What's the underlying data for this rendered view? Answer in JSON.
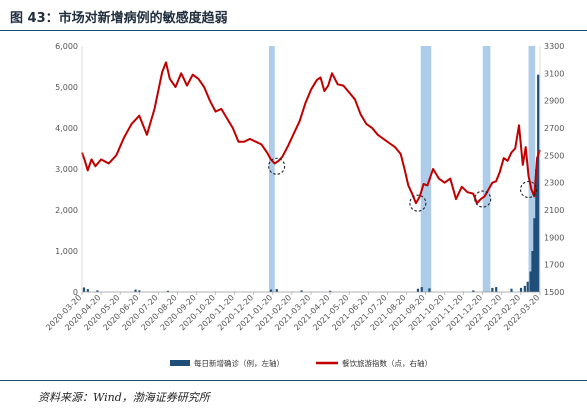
{
  "header": {
    "title": "图 43：市场对新增病例的敏感度趋弱"
  },
  "source": {
    "text": "资料来源：Wind，渤海证券研究所"
  },
  "colors": {
    "line": "#c00000",
    "bars": "#1f4e79",
    "band": "#9dc3e6",
    "title_rule": "#1f4e79"
  },
  "chart_data": {
    "type": "bar+line",
    "title": "",
    "left_axis": {
      "ylim": [
        0,
        6000
      ],
      "ticks": [
        "0",
        "1,000",
        "2,000",
        "3,000",
        "4,000",
        "5,000",
        "6,000"
      ]
    },
    "right_axis": {
      "ylim": [
        1500,
        3300
      ],
      "ticks": [
        "1500",
        "1700",
        "1900",
        "2100",
        "2300",
        "2500",
        "2700",
        "2900",
        "3100",
        "3300"
      ]
    },
    "x_ticks": [
      "2020-03-20",
      "2020-04-20",
      "2020-05-20",
      "2020-06-20",
      "2020-07-20",
      "2020-08-20",
      "2020-09-20",
      "2020-10-20",
      "2020-11-20",
      "2020-12-20",
      "2021-01-20",
      "2021-02-20",
      "2021-03-20",
      "2021-04-20",
      "2021-05-20",
      "2021-06-20",
      "2021-07-20",
      "2021-08-20",
      "2021-09-20",
      "2021-10-20",
      "2021-11-20",
      "2021-12-20",
      "2022-01-20",
      "2022-02-20",
      "2022-03-20"
    ],
    "x_range": [
      0,
      24
    ],
    "series": [
      {
        "name": "每日新增确诊（例，左轴）",
        "kind": "bar",
        "axis": "left",
        "x": [
          0.1,
          0.3,
          0.8,
          2.8,
          3.0,
          4.5,
          9.9,
          10.2,
          11.5,
          13.0,
          17.6,
          17.8,
          18.2,
          20.5,
          21.5,
          21.7,
          22.5,
          23.0,
          23.2,
          23.35,
          23.5,
          23.6,
          23.7,
          23.8,
          23.9
        ],
        "values": [
          110,
          70,
          40,
          60,
          40,
          30,
          60,
          70,
          40,
          30,
          80,
          120,
          90,
          40,
          100,
          120,
          80,
          100,
          150,
          250,
          500,
          1000,
          1800,
          3000,
          5300
        ]
      },
      {
        "name": "餐饮旅游指数（点，右轴）",
        "kind": "line",
        "axis": "right",
        "x": [
          0,
          0.15,
          0.3,
          0.5,
          0.7,
          1.0,
          1.4,
          1.8,
          2.2,
          2.6,
          3.0,
          3.4,
          3.8,
          4.2,
          4.4,
          4.6,
          4.9,
          5.2,
          5.5,
          5.8,
          6.1,
          6.4,
          6.7,
          7.0,
          7.3,
          7.6,
          7.9,
          8.2,
          8.5,
          8.8,
          9.1,
          9.4,
          9.7,
          9.9,
          10.1,
          10.3,
          10.5,
          10.8,
          11.1,
          11.4,
          11.7,
          12.0,
          12.3,
          12.5,
          12.7,
          12.9,
          13.1,
          13.4,
          13.7,
          14.0,
          14.3,
          14.6,
          14.9,
          15.2,
          15.5,
          15.8,
          16.1,
          16.4,
          16.7,
          16.9,
          17.1,
          17.3,
          17.5,
          17.7,
          17.9,
          18.1,
          18.4,
          18.7,
          19.0,
          19.3,
          19.6,
          19.9,
          20.2,
          20.5,
          20.7,
          20.9,
          21.1,
          21.3,
          21.5,
          21.7,
          21.9,
          22.1,
          22.3,
          22.5,
          22.7,
          22.9,
          23.1,
          23.25,
          23.4,
          23.55,
          23.7,
          23.85,
          24.0
        ],
        "values": [
          2520,
          2460,
          2390,
          2470,
          2420,
          2470,
          2440,
          2500,
          2630,
          2730,
          2790,
          2650,
          2840,
          3110,
          3180,
          3060,
          3000,
          3100,
          3010,
          3090,
          3060,
          3000,
          2900,
          2820,
          2840,
          2770,
          2700,
          2600,
          2600,
          2620,
          2600,
          2580,
          2520,
          2470,
          2440,
          2460,
          2490,
          2570,
          2660,
          2750,
          2880,
          2980,
          3050,
          3070,
          2970,
          3010,
          3100,
          3020,
          3010,
          2960,
          2910,
          2800,
          2730,
          2700,
          2650,
          2620,
          2590,
          2560,
          2510,
          2400,
          2280,
          2220,
          2150,
          2200,
          2290,
          2280,
          2400,
          2330,
          2300,
          2330,
          2180,
          2270,
          2230,
          2220,
          2150,
          2180,
          2200,
          2250,
          2300,
          2310,
          2380,
          2480,
          2460,
          2520,
          2550,
          2720,
          2430,
          2560,
          2350,
          2250,
          2200,
          2480,
          2540
        ]
      }
    ],
    "highlight_bands": [
      [
        9.8,
        10.1
      ],
      [
        17.75,
        18.3
      ],
      [
        21.0,
        21.4
      ],
      [
        23.4,
        23.75
      ]
    ],
    "marked_circles": [
      {
        "x": 10.2,
        "y": 2420
      },
      {
        "x": 17.6,
        "y": 2150
      },
      {
        "x": 21.0,
        "y": 2180
      },
      {
        "x": 23.4,
        "y": 2250
      }
    ],
    "legend_position": "bottom"
  }
}
